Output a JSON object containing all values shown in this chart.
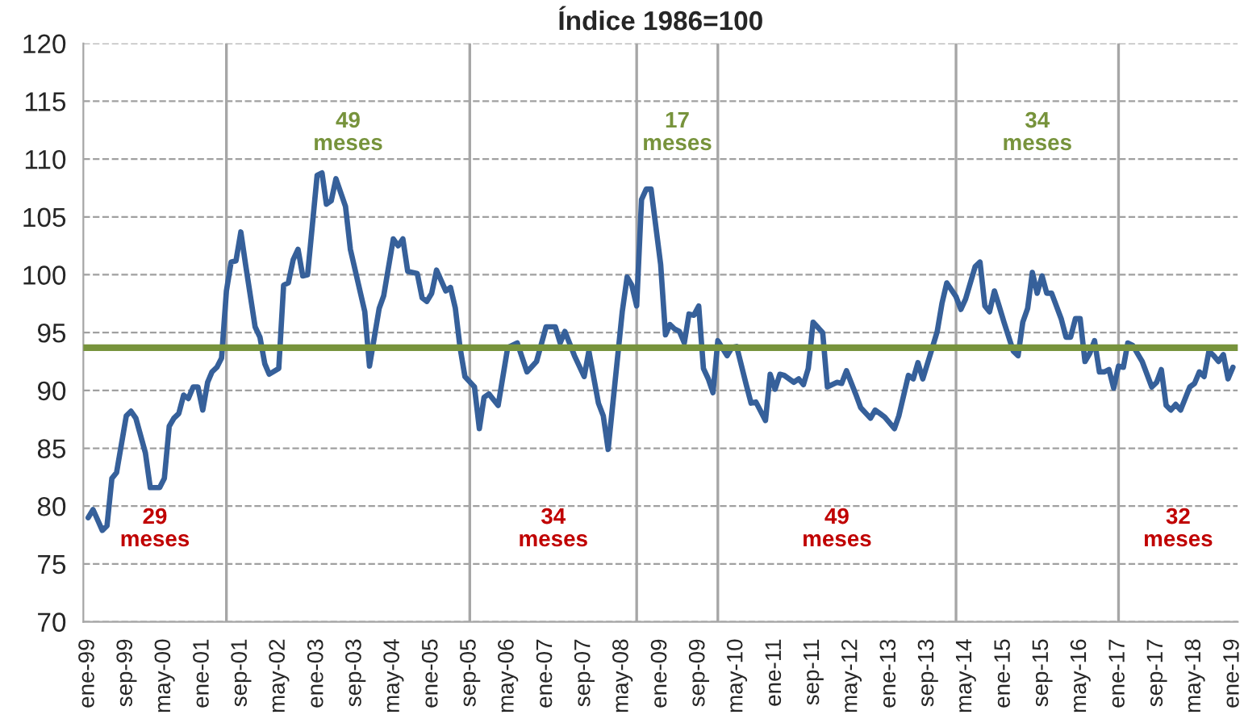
{
  "chart_data": {
    "type": "line",
    "title": "Índice 1986=100",
    "series": [
      {
        "color": "#36609a",
        "x": [
          "1999-01",
          "1999-02",
          "1999-04",
          "1999-05",
          "1999-06",
          "1999-07",
          "1999-09",
          "1999-10",
          "1999-11",
          "2000-01",
          "2000-02",
          "2000-04",
          "2000-05",
          "2000-06",
          "2000-07",
          "2000-08",
          "2000-09",
          "2000-10",
          "2000-11",
          "2000-12",
          "2001-01",
          "2001-02",
          "2001-03",
          "2001-04",
          "2001-05",
          "2001-06",
          "2001-07",
          "2001-08",
          "2001-09",
          "2001-10",
          "2001-12",
          "2002-01",
          "2002-02",
          "2002-03",
          "2002-05",
          "2002-06",
          "2002-07",
          "2002-08",
          "2002-09",
          "2002-10",
          "2002-11",
          "2003-01",
          "2003-02",
          "2003-03",
          "2003-04",
          "2003-05",
          "2003-07",
          "2003-08",
          "2003-11",
          "2003-12",
          "2004-01",
          "2004-02",
          "2004-03",
          "2004-05",
          "2004-06",
          "2004-07",
          "2004-08",
          "2004-10",
          "2004-11",
          "2004-12",
          "2005-01",
          "2005-02",
          "2005-04",
          "2005-05",
          "2005-06",
          "2005-07",
          "2005-08",
          "2005-10",
          "2005-11",
          "2005-12",
          "2006-01",
          "2006-03",
          "2006-05",
          "2006-07",
          "2006-09",
          "2006-11",
          "2007-01",
          "2007-03",
          "2007-04",
          "2007-05",
          "2007-07",
          "2007-09",
          "2007-10",
          "2007-12",
          "2008-01",
          "2008-02",
          "2008-05",
          "2008-06",
          "2008-07",
          "2008-08",
          "2008-09",
          "2008-10",
          "2008-11",
          "2009-01",
          "2009-02",
          "2009-03",
          "2009-04",
          "2009-05",
          "2009-06",
          "2009-07",
          "2009-08",
          "2009-09",
          "2009-10",
          "2009-11",
          "2009-12",
          "2010-01",
          "2010-03",
          "2010-04",
          "2010-05",
          "2010-07",
          "2010-08",
          "2010-09",
          "2010-11",
          "2010-12",
          "2011-01",
          "2011-02",
          "2011-03",
          "2011-05",
          "2011-06",
          "2011-07",
          "2011-08",
          "2011-09",
          "2011-11",
          "2011-12",
          "2012-02",
          "2012-03",
          "2012-04",
          "2012-06",
          "2012-07",
          "2012-09",
          "2012-10",
          "2012-11",
          "2012-12",
          "2013-02",
          "2013-03",
          "2013-05",
          "2013-06",
          "2013-07",
          "2013-08",
          "2013-10",
          "2013-11",
          "2013-12",
          "2014-01",
          "2014-03",
          "2014-04",
          "2014-05",
          "2014-07",
          "2014-08",
          "2014-09",
          "2014-10",
          "2014-11",
          "2014-12",
          "2015-01",
          "2015-03",
          "2015-04",
          "2015-05",
          "2015-06",
          "2015-07",
          "2015-08",
          "2015-09",
          "2015-10",
          "2015-11",
          "2016-01",
          "2016-02",
          "2016-03",
          "2016-04",
          "2016-05",
          "2016-06",
          "2016-07",
          "2016-08",
          "2016-09",
          "2016-10",
          "2016-11",
          "2016-12",
          "2017-01",
          "2017-02",
          "2017-03",
          "2017-04",
          "2017-06",
          "2017-08",
          "2017-09",
          "2017-10",
          "2017-11",
          "2017-12",
          "2018-01",
          "2018-02",
          "2018-04",
          "2018-05",
          "2018-06",
          "2018-07",
          "2018-08",
          "2018-09",
          "2018-10",
          "2018-11",
          "2018-12",
          "2019-01"
        ],
        "values": [
          79.0,
          79.7,
          77.9,
          78.3,
          82.4,
          82.9,
          87.8,
          88.2,
          87.6,
          84.6,
          81.6,
          81.6,
          82.4,
          86.9,
          87.6,
          88.0,
          89.6,
          89.3,
          90.3,
          90.3,
          88.3,
          90.7,
          91.6,
          92.0,
          92.8,
          98.6,
          101.1,
          101.2,
          103.7,
          100.9,
          95.5,
          94.6,
          92.3,
          91.4,
          91.9,
          99.1,
          99.3,
          101.3,
          102.2,
          99.9,
          100.0,
          108.6,
          108.8,
          106.1,
          106.4,
          108.3,
          105.9,
          102.2,
          96.8,
          92.1,
          94.6,
          97.1,
          98.2,
          103.1,
          102.5,
          103.1,
          100.3,
          100.1,
          98.0,
          97.7,
          98.4,
          100.4,
          98.6,
          98.9,
          97.1,
          93.7,
          91.2,
          90.3,
          86.7,
          89.4,
          89.7,
          88.7,
          93.7,
          94.1,
          91.6,
          92.5,
          95.5,
          95.5,
          94.1,
          95.1,
          93.0,
          91.2,
          93.4,
          88.9,
          87.8,
          84.9,
          96.8,
          99.8,
          99.1,
          97.3,
          106.5,
          107.4,
          107.4,
          100.9,
          94.8,
          95.7,
          95.3,
          95.1,
          94.1,
          96.6,
          96.5,
          97.3,
          91.9,
          91.0,
          89.8,
          94.3,
          93.0,
          93.7,
          93.8,
          90.5,
          88.9,
          89.0,
          87.4,
          91.4,
          90.1,
          91.4,
          91.3,
          90.7,
          91.0,
          90.5,
          91.9,
          95.9,
          95.0,
          90.3,
          90.7,
          90.6,
          91.7,
          89.6,
          88.5,
          87.6,
          88.3,
          88.0,
          87.7,
          86.7,
          87.8,
          91.3,
          91.0,
          92.4,
          91.0,
          93.7,
          95.1,
          97.5,
          99.3,
          98.1,
          97.0,
          97.9,
          100.7,
          101.1,
          97.3,
          96.8,
          98.6,
          97.3,
          95.9,
          93.4,
          93.0,
          95.9,
          97.1,
          100.2,
          98.4,
          99.9,
          98.4,
          98.4,
          96.2,
          94.6,
          94.6,
          96.2,
          96.2,
          92.5,
          93.2,
          94.3,
          91.6,
          91.6,
          91.8,
          90.2,
          92.1,
          92.0,
          94.1,
          93.9,
          92.5,
          90.3,
          90.7,
          91.8,
          88.7,
          88.3,
          88.8,
          88.3,
          90.3,
          90.6,
          91.6,
          91.2,
          93.4,
          93.0,
          92.5,
          93.1,
          91.0,
          92.0
        ]
      }
    ],
    "xlim": [
      "1998-12",
      "2019-02"
    ],
    "xticks": [
      {
        "value": "1999-01",
        "label": "ene-99"
      },
      {
        "value": "1999-09",
        "label": "sep-99"
      },
      {
        "value": "2000-05",
        "label": "may-00"
      },
      {
        "value": "2001-01",
        "label": "ene-01"
      },
      {
        "value": "2001-09",
        "label": "sep-01"
      },
      {
        "value": "2002-05",
        "label": "may-02"
      },
      {
        "value": "2003-01",
        "label": "ene-03"
      },
      {
        "value": "2003-09",
        "label": "sep-03"
      },
      {
        "value": "2004-05",
        "label": "may-04"
      },
      {
        "value": "2005-01",
        "label": "ene-05"
      },
      {
        "value": "2005-09",
        "label": "sep-05"
      },
      {
        "value": "2006-05",
        "label": "may-06"
      },
      {
        "value": "2007-01",
        "label": "ene-07"
      },
      {
        "value": "2007-09",
        "label": "sep-07"
      },
      {
        "value": "2008-05",
        "label": "may-08"
      },
      {
        "value": "2009-01",
        "label": "ene-09"
      },
      {
        "value": "2009-09",
        "label": "sep-09"
      },
      {
        "value": "2010-05",
        "label": "may-10"
      },
      {
        "value": "2011-01",
        "label": "ene-11"
      },
      {
        "value": "2011-09",
        "label": "sep-11"
      },
      {
        "value": "2012-05",
        "label": "may-12"
      },
      {
        "value": "2013-01",
        "label": "ene-13"
      },
      {
        "value": "2013-09",
        "label": "sep-13"
      },
      {
        "value": "2014-05",
        "label": "may-14"
      },
      {
        "value": "2015-01",
        "label": "ene-15"
      },
      {
        "value": "2015-09",
        "label": "sep-15"
      },
      {
        "value": "2016-05",
        "label": "may-16"
      },
      {
        "value": "2017-01",
        "label": "ene-17"
      },
      {
        "value": "2017-09",
        "label": "sep-17"
      },
      {
        "value": "2018-05",
        "label": "may-18"
      },
      {
        "value": "2019-01",
        "label": "ene-19"
      }
    ],
    "ylim": [
      70,
      120
    ],
    "yticks": [
      70,
      75,
      80,
      85,
      90,
      95,
      100,
      105,
      110,
      115,
      120
    ],
    "grid": "y",
    "line_style": "solid",
    "marker": "none",
    "ref_lines": [
      {
        "axis": "y",
        "value": 93.7,
        "color": "#77933c"
      },
      {
        "axis": "x",
        "value": "2001-06",
        "color": "#a6a6a6"
      },
      {
        "axis": "x",
        "value": "2005-09",
        "color": "#a6a6a6"
      },
      {
        "axis": "x",
        "value": "2008-08",
        "color": "#a6a6a6"
      },
      {
        "axis": "x",
        "value": "2010-01",
        "color": "#a6a6a6"
      },
      {
        "axis": "x",
        "value": "2014-03",
        "color": "#a6a6a6"
      },
      {
        "axis": "x",
        "value": "2017-01",
        "color": "#a6a6a6"
      }
    ],
    "annotations": [
      "29\nmeses",
      "49\nmeses",
      "34\nmeses",
      "17\nmeses",
      "49\nmeses",
      "34\nmeses",
      "32\nmeses"
    ]
  }
}
